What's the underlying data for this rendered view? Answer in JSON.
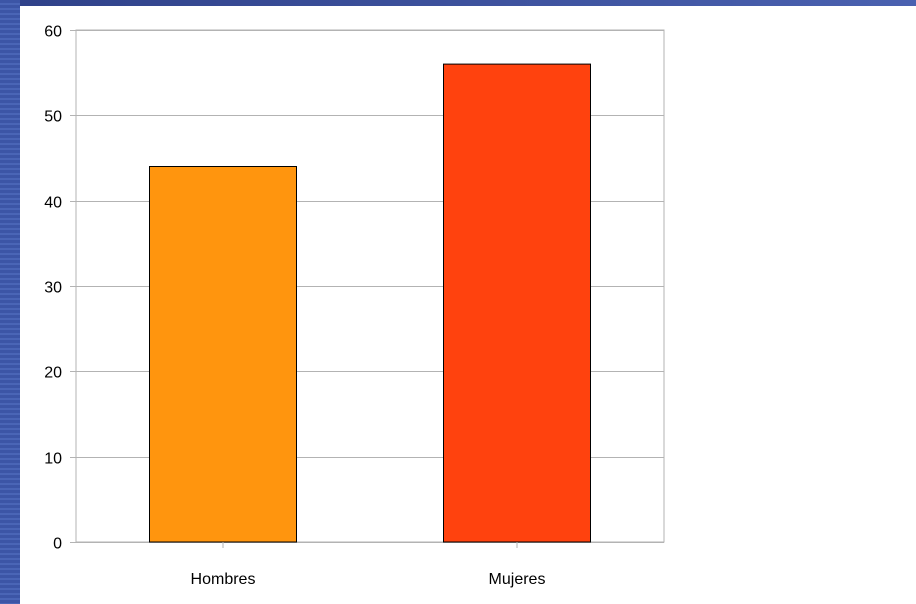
{
  "chart_data": {
    "type": "bar",
    "title": "",
    "xlabel": "",
    "ylabel": "",
    "categories": [
      "Hombres",
      "Mujeres"
    ],
    "values": [
      44,
      56
    ],
    "ylim": [
      0,
      60
    ],
    "yticks": [
      0,
      10,
      20,
      30,
      40,
      50,
      60
    ],
    "grid": true,
    "legend": "none",
    "bar_colors": [
      "#ff950e",
      "#ff420e"
    ],
    "grid_color": "#b3b3b3",
    "axis_color": "#b3b3b3"
  }
}
